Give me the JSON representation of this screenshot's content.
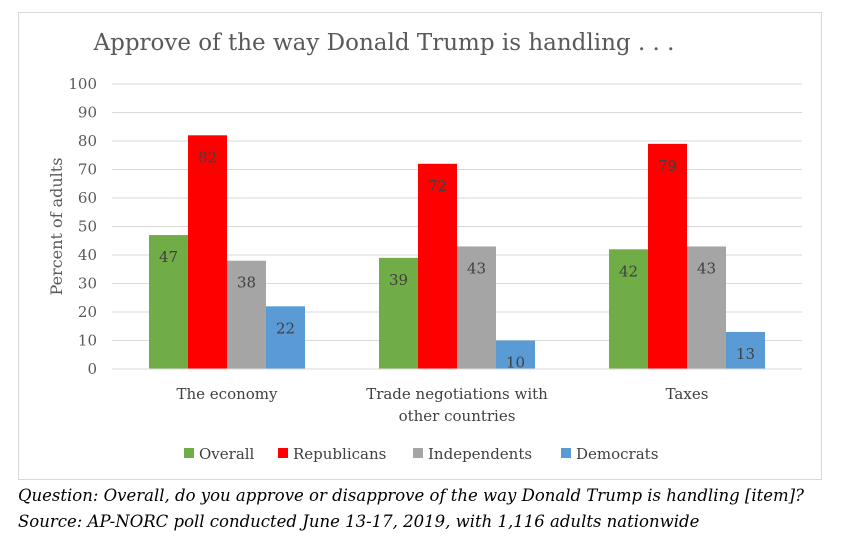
{
  "chart_data": {
    "type": "bar",
    "title": "Approve of the way Donald Trump is handling . . .",
    "ylabel": "Percent of adults",
    "xlabel": "",
    "ylim": [
      0,
      100
    ],
    "yticks": [
      "0",
      "10",
      "20",
      "30",
      "40",
      "50",
      "60",
      "70",
      "80",
      "90",
      "100"
    ],
    "categories": [
      [
        "The economy"
      ],
      [
        "Trade negotiations with",
        "other countries"
      ],
      [
        "Taxes"
      ]
    ],
    "series": [
      {
        "name": "Overall",
        "color": "#70ad47",
        "values": [
          47,
          39,
          42
        ]
      },
      {
        "name": "Republicans",
        "color": "#ff0000",
        "values": [
          82,
          72,
          79
        ]
      },
      {
        "name": "Independents",
        "color": "#a5a5a5",
        "values": [
          38,
          43,
          43
        ]
      },
      {
        "name": "Democrats",
        "color": "#5b9bd5",
        "values": [
          22,
          10,
          13
        ]
      }
    ],
    "grid": true,
    "legend_position": "bottom"
  },
  "footer": {
    "question": "Question: Overall, do you approve or disapprove of the way Donald Trump is handling [item]?",
    "source": "Source: AP-NORC poll conducted June 13-17, 2019, with 1,116 adults nationwide"
  }
}
